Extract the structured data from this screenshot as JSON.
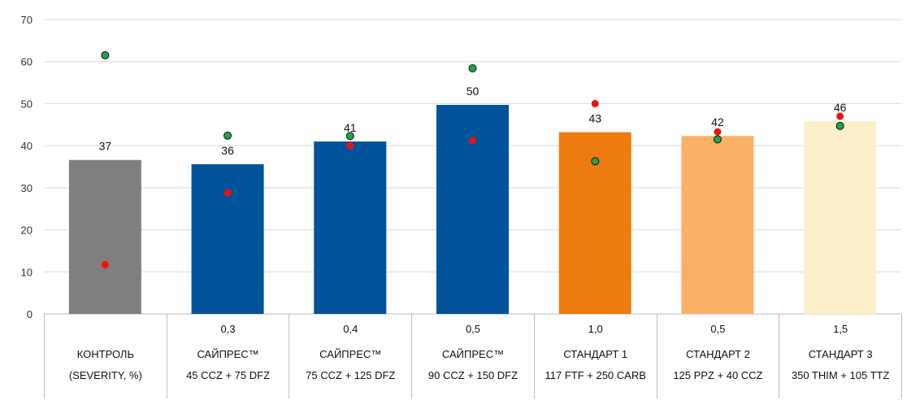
{
  "chart_data": {
    "type": "bar",
    "ylim": [
      0,
      70
    ],
    "yticks": [
      0,
      10,
      20,
      30,
      40,
      50,
      60,
      70
    ],
    "grid": true,
    "categories": [
      {
        "rate": "",
        "name": "КОНТРОЛЬ",
        "dose": "(SEVERITY, %)"
      },
      {
        "rate": "0,3",
        "name": "САЙПРЕС™",
        "dose": "45 CCZ + 75 DFZ"
      },
      {
        "rate": "0,4",
        "name": "САЙПРЕС™",
        "dose": "75 CCZ + 125 DFZ"
      },
      {
        "rate": "0,5",
        "name": "САЙПРЕС™",
        "dose": "90 CCZ + 150 DFZ"
      },
      {
        "rate": "1,0",
        "name": "СТАНДАРТ 1",
        "dose": "117 FTF + 250 CARB"
      },
      {
        "rate": "0,5",
        "name": "СТАНДАРТ 2",
        "dose": "125 PPZ + 40 CCZ"
      },
      {
        "rate": "1,5",
        "name": "СТАНДАРТ 3",
        "dose": "350 THIM + 105 TTZ"
      }
    ],
    "bars": {
      "values": [
        36.6,
        35.6,
        41.0,
        49.7,
        43.2,
        42.3,
        45.8
      ],
      "labels": [
        "37",
        "36",
        "41",
        "50",
        "43",
        "42",
        "46"
      ],
      "colors": [
        "#7f7f7f",
        "#00539b",
        "#00539b",
        "#00539b",
        "#ee7b10",
        "#f9b166",
        "#fdefcc"
      ]
    },
    "green_points": {
      "values": [
        61.5,
        42.4,
        42.3,
        58.4,
        36.3,
        41.5,
        44.7
      ],
      "color": "#1ea34a"
    },
    "red_points": {
      "values": [
        11.7,
        28.8,
        40.0,
        41.2,
        50.0,
        43.3,
        47.0
      ],
      "color": "#ee1111"
    }
  }
}
